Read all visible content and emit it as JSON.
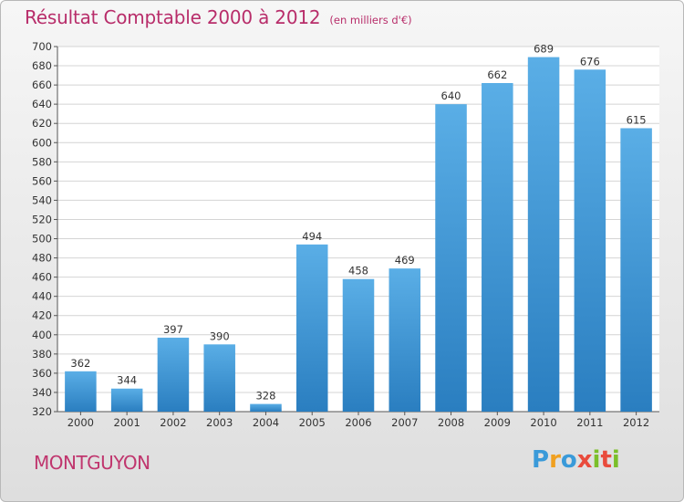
{
  "header": {
    "title": "Résultat Comptable 2000 à 2012",
    "subtitle": "(en milliers d'€)"
  },
  "footer": {
    "city": "MONTGUYON",
    "logo": {
      "letters": [
        "P",
        "r",
        "o",
        "x",
        "i",
        "t",
        "i"
      ],
      "colors": [
        "#3a9ad9",
        "#f0a020",
        "#3a9ad9",
        "#e94b3c",
        "#7bbf2a",
        "#e94b3c",
        "#7bbf2a"
      ]
    }
  },
  "chart_data": {
    "type": "bar",
    "title": "Résultat Comptable 2000 à 2012",
    "categories": [
      "2000",
      "2001",
      "2002",
      "2003",
      "2004",
      "2005",
      "2006",
      "2007",
      "2008",
      "2009",
      "2010",
      "2011",
      "2012"
    ],
    "values": [
      362,
      344,
      397,
      390,
      328,
      494,
      458,
      469,
      640,
      662,
      689,
      676,
      615
    ],
    "ylim": [
      320,
      700
    ],
    "yticks": [
      320,
      340,
      360,
      380,
      400,
      420,
      440,
      460,
      480,
      500,
      520,
      540,
      560,
      580,
      600,
      620,
      640,
      660,
      680,
      700
    ],
    "grid": true,
    "bar_color_top": "#5aaee6",
    "bar_color_bottom": "#2a7ec0"
  }
}
